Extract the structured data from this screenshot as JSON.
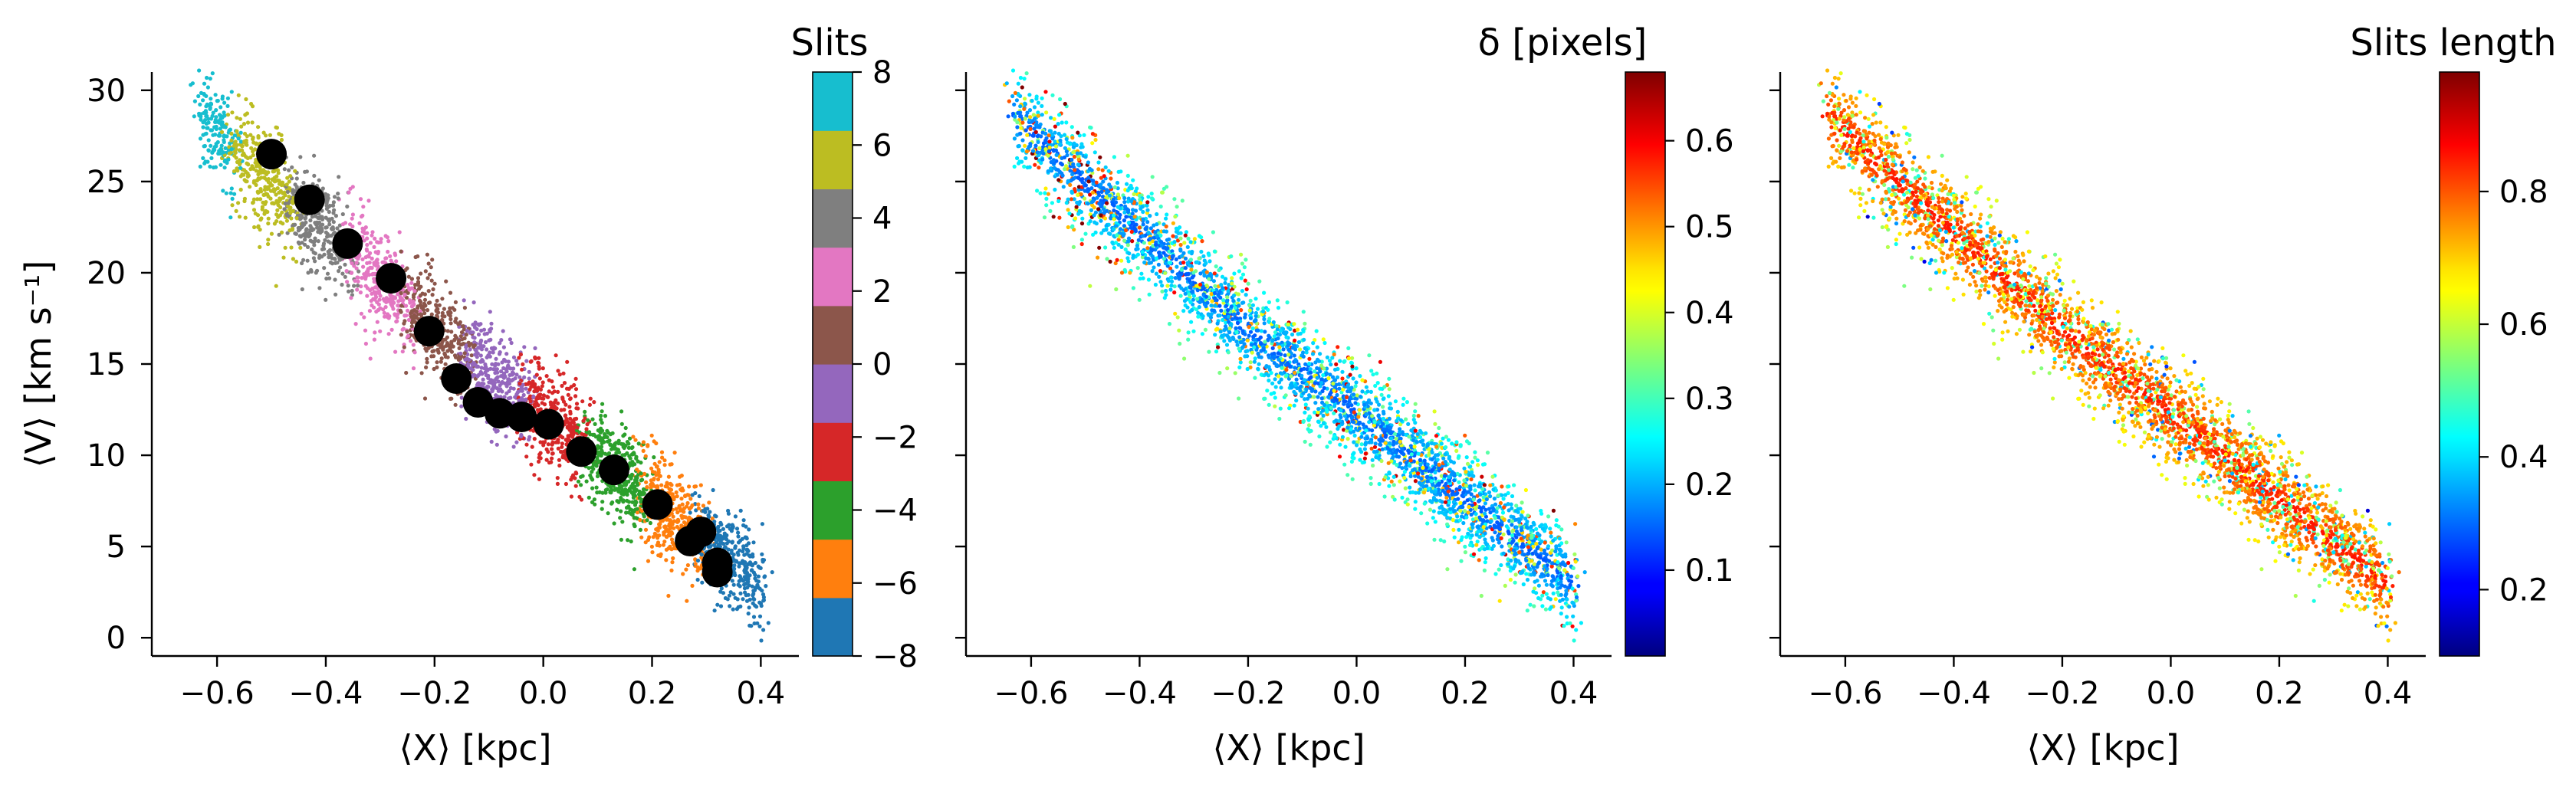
{
  "chart_data": [
    {
      "type": "scatter",
      "xlabel": "⟨X⟩ [kpc]",
      "ylabel": "⟨V⟩ [km s⁻¹]",
      "xlim": [
        -0.72,
        0.47
      ],
      "ylim": [
        -1,
        31
      ],
      "xticks": [
        "−0.6",
        "−0.4",
        "−0.2",
        "0.0",
        "0.2",
        "0.4"
      ],
      "xtick_values": [
        -0.6,
        -0.4,
        -0.2,
        0.0,
        0.2,
        0.4
      ],
      "yticks": [
        "0",
        "5",
        "10",
        "15",
        "20",
        "25",
        "30"
      ],
      "ytick_values": [
        0,
        5,
        10,
        15,
        20,
        25,
        30
      ],
      "colorbar": {
        "title": "Slits",
        "range": [
          -8,
          8
        ],
        "ticks": [
          "−8",
          "−6",
          "−4",
          "−2",
          "0",
          "2",
          "4",
          "6",
          "8"
        ],
        "tick_values": [
          -8,
          -6,
          -4,
          -2,
          0,
          2,
          4,
          6,
          8
        ],
        "discrete_colors": [
          "#1f77b4",
          "#ff7f0e",
          "#2ca02c",
          "#d62728",
          "#9467bd",
          "#8c564b",
          "#e377c2",
          "#7f7f7f",
          "#bcbd22",
          "#17becf"
        ]
      },
      "series": [
        {
          "marker": "large-black-circle",
          "color": "#000000",
          "points": [
            {
              "x": -0.5,
              "y": 26.5
            },
            {
              "x": -0.43,
              "y": 24.0
            },
            {
              "x": -0.36,
              "y": 21.6
            },
            {
              "x": -0.28,
              "y": 19.7
            },
            {
              "x": -0.21,
              "y": 16.8
            },
            {
              "x": -0.16,
              "y": 14.2
            },
            {
              "x": -0.12,
              "y": 12.9
            },
            {
              "x": -0.08,
              "y": 12.3
            },
            {
              "x": -0.04,
              "y": 12.1
            },
            {
              "x": 0.01,
              "y": 11.7
            },
            {
              "x": 0.07,
              "y": 10.2
            },
            {
              "x": 0.13,
              "y": 9.2
            },
            {
              "x": 0.21,
              "y": 7.3
            },
            {
              "x": 0.27,
              "y": 5.3
            },
            {
              "x": 0.29,
              "y": 5.8
            },
            {
              "x": 0.32,
              "y": 4.1
            },
            {
              "x": 0.32,
              "y": 3.6
            }
          ]
        }
      ]
    },
    {
      "type": "scatter",
      "xlabel": "⟨X⟩ [kpc]",
      "xlim": [
        -0.72,
        0.47
      ],
      "ylim": [
        -1,
        31
      ],
      "xticks": [
        "−0.6",
        "−0.4",
        "−0.2",
        "0.0",
        "0.2",
        "0.4"
      ],
      "xtick_values": [
        -0.6,
        -0.4,
        -0.2,
        0.0,
        0.2,
        0.4
      ],
      "colorbar": {
        "title": "δ [pixels]",
        "colormap": "jet",
        "range": [
          0.0,
          0.68
        ],
        "ticks": [
          "0.1",
          "0.2",
          "0.3",
          "0.4",
          "0.5",
          "0.6"
        ],
        "tick_values": [
          0.1,
          0.2,
          0.3,
          0.4,
          0.5,
          0.6
        ]
      }
    },
    {
      "type": "scatter",
      "xlabel": "⟨X⟩ [kpc]",
      "xlim": [
        -0.72,
        0.47
      ],
      "ylim": [
        -1,
        31
      ],
      "xticks": [
        "−0.6",
        "−0.4",
        "−0.2",
        "0.0",
        "0.2",
        "0.4"
      ],
      "xtick_values": [
        -0.6,
        -0.4,
        -0.2,
        0.0,
        0.2,
        0.4
      ],
      "colorbar": {
        "title": "Slits length",
        "colormap": "jet",
        "range": [
          0.1,
          0.98
        ],
        "ticks": [
          "0.2",
          "0.4",
          "0.6",
          "0.8"
        ],
        "tick_values": [
          0.2,
          0.4,
          0.6,
          0.8
        ]
      }
    }
  ]
}
